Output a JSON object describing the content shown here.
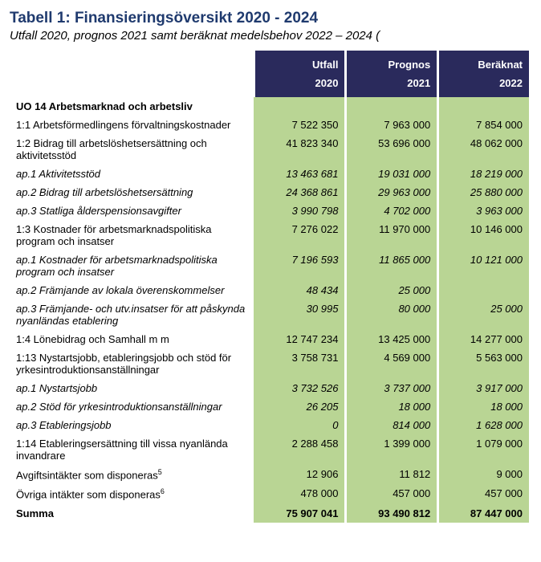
{
  "title": "Tabell 1: Finansieringsöversikt 2020 - 2024",
  "subtitle": "Utfall 2020, prognos 2021 samt beräknat medelsbehov 2022 – 2024 (",
  "colors": {
    "title": "#1f3a6e",
    "header_bg": "#2a2a5c",
    "header_fg": "#ffffff",
    "num_bg": "#b9d594",
    "page_bg": "#ffffff"
  },
  "header": {
    "top": [
      "Utfall",
      "Prognos",
      "Beräknat"
    ],
    "bot": [
      "2020",
      "2021",
      "2022"
    ]
  },
  "rows": [
    {
      "label": "UO 14 Arbetsmarknad och arbetsliv",
      "v": [
        "",
        "",
        ""
      ],
      "section": true
    },
    {
      "label": "1:1 Arbetsförmedlingens förvaltningskostnader",
      "v": [
        "7 522 350",
        "7 963 000",
        "7 854 000"
      ]
    },
    {
      "label": "1:2 Bidrag till arbetslöshetsersättning och aktivitetsstöd",
      "v": [
        "41 823 340",
        "53 696 000",
        "48 062 000"
      ]
    },
    {
      "label": "ap.1 Aktivitetsstöd",
      "v": [
        "13 463 681",
        "19 031 000",
        "18 219 000"
      ],
      "italic": true
    },
    {
      "label": "ap.2 Bidrag till arbetslöshetsersättning",
      "v": [
        "24 368 861",
        "29 963 000",
        "25 880 000"
      ],
      "italic": true
    },
    {
      "label": "ap.3 Statliga ålderspensionsavgifter",
      "v": [
        "3 990 798",
        "4 702 000",
        "3 963 000"
      ],
      "italic": true
    },
    {
      "label": "1:3 Kostnader för arbetsmarknadspolitiska program och insatser",
      "v": [
        "7 276 022",
        "11 970 000",
        "10 146 000"
      ]
    },
    {
      "label": "ap.1 Kostnader för arbetsmarknadspolitiska program och insatser",
      "v": [
        "7 196 593",
        "11 865 000",
        "10 121 000"
      ],
      "italic": true
    },
    {
      "label": "ap.2 Främjande av lokala överenskommelser",
      "v": [
        "48 434",
        "25 000",
        ""
      ],
      "italic": true
    },
    {
      "label": "ap.3 Främjande- och utv.insatser för att påskynda nyanländas etablering",
      "v": [
        "30 995",
        "80 000",
        "25 000"
      ],
      "italic": true
    },
    {
      "label": "1:4 Lönebidrag och Samhall m m",
      "v": [
        "12 747 234",
        "13 425 000",
        "14 277 000"
      ]
    },
    {
      "label": "1:13 Nystartsjobb, etableringsjobb och stöd för yrkesintroduktionsanställningar",
      "v": [
        "3 758 731",
        "4 569 000",
        "5 563 000"
      ]
    },
    {
      "label": "ap.1 Nystartsjobb",
      "v": [
        "3 732 526",
        "3 737 000",
        "3 917 000"
      ],
      "italic": true
    },
    {
      "label": "ap.2 Stöd för yrkesintroduktionsanställningar",
      "v": [
        "26 205",
        "18 000",
        "18 000"
      ],
      "italic": true
    },
    {
      "label": "ap.3 Etableringsjobb",
      "v": [
        "0",
        "814 000",
        "1 628 000"
      ],
      "italic": true
    },
    {
      "label": "1:14 Etableringsersättning till vissa nyanlända invandrare",
      "v": [
        "2 288 458",
        "1 399 000",
        "1 079 000"
      ]
    },
    {
      "label": "Avgiftsintäkter som disponeras",
      "sup": "5",
      "v": [
        "12 906",
        "11 812",
        "9 000"
      ]
    },
    {
      "label": "Övriga intäkter som disponeras",
      "sup": "6",
      "v": [
        "478 000",
        "457 000",
        "457 000"
      ]
    },
    {
      "label": "Summa",
      "v": [
        "75 907 041",
        "93 490 812",
        "87 447 000"
      ],
      "summa": true
    }
  ]
}
